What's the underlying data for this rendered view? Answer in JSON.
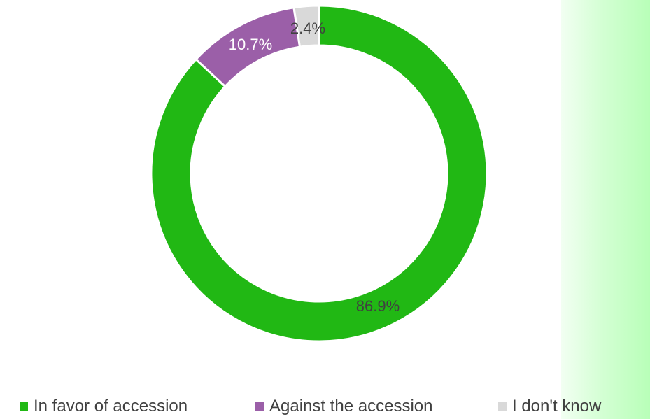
{
  "chart_data": {
    "type": "pie",
    "donut": true,
    "title": "",
    "categories": [
      "In favor of accession",
      "Against the accession",
      "I don't know"
    ],
    "values": [
      86.9,
      10.7,
      2.4
    ],
    "data_labels": [
      "86.9%",
      "10.7%",
      "2.4%"
    ],
    "colors": [
      "#21b814",
      "#9b5fa8",
      "#d9d9d9"
    ],
    "label_colors": [
      "#404040",
      "#ffffff",
      "#404040"
    ],
    "legend_position": "bottom"
  },
  "legend": {
    "items": [
      {
        "label": "In favor of accession",
        "color": "#21b814"
      },
      {
        "label": "Against the accession",
        "color": "#9b5fa8"
      },
      {
        "label": "I don't know",
        "color": "#d9d9d9"
      }
    ]
  },
  "background_band_color": "#b8ffb8"
}
